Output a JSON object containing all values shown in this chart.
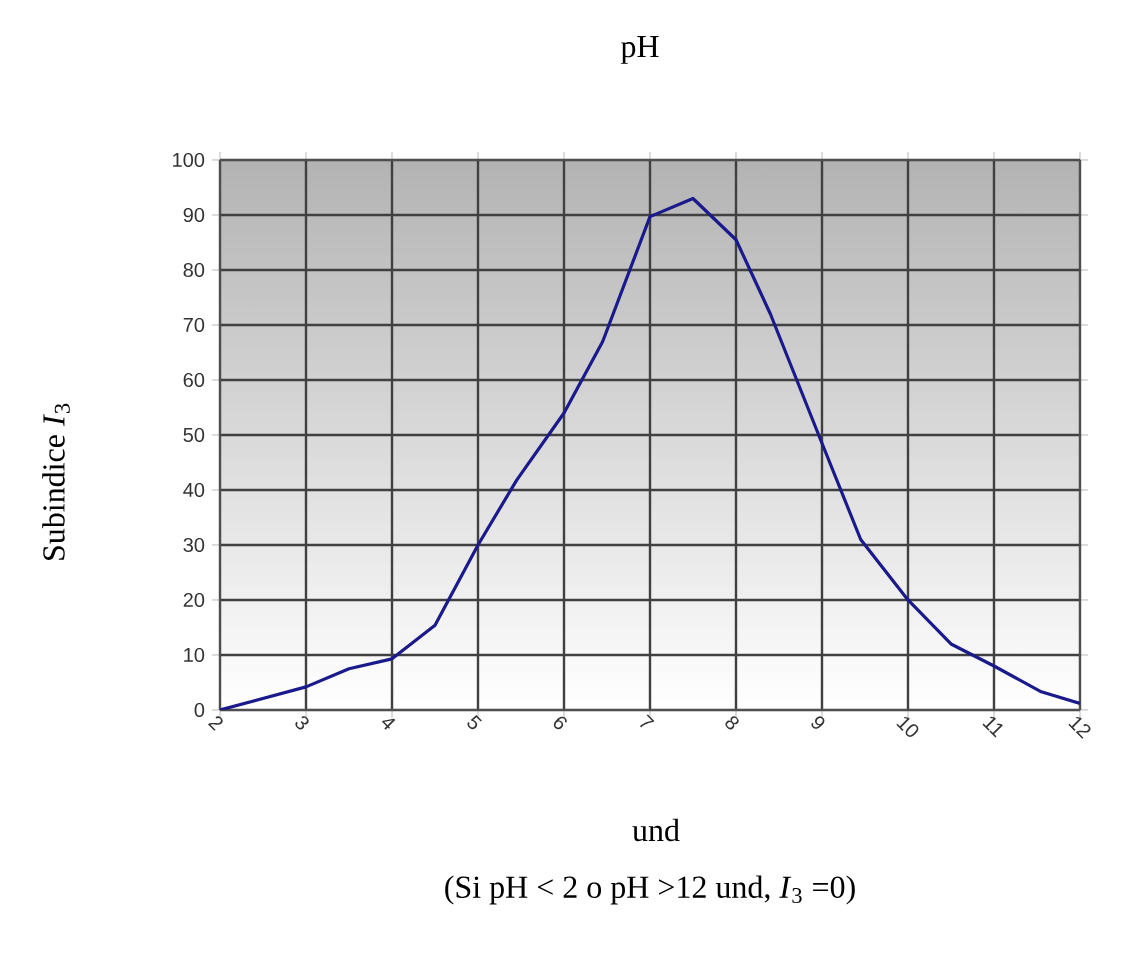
{
  "chart_data": {
    "type": "line",
    "title": "pH",
    "xlabel": "und",
    "ylabel": "Subindice *I*$_{3}$",
    "annotations": [
      "(Si pH < 2 o pH >12 und, *I*$_{3}$ =0)"
    ],
    "x": [
      2,
      3,
      3.5,
      4,
      4.5,
      5,
      5.45,
      6,
      6.45,
      7,
      7.5,
      8,
      8.4,
      9,
      9.45,
      10,
      10.5,
      11,
      11.55,
      12
    ],
    "series": [
      {
        "color": "#1a1a8c",
        "values": [
          0,
          4.2,
          7.5,
          9.3,
          15.4,
          30,
          41.8,
          54,
          67,
          89.7,
          93,
          85.5,
          72,
          48.5,
          31,
          20,
          12,
          8,
          3.3,
          1.2
        ]
      }
    ],
    "xlim": [
      2,
      12
    ],
    "ylim": [
      0,
      100
    ],
    "xticks": [
      2,
      3,
      4,
      5,
      6,
      7,
      8,
      9,
      10,
      11,
      12
    ],
    "yticks": [
      0,
      10,
      20,
      30,
      40,
      50,
      60,
      70,
      80,
      90,
      100
    ],
    "grid": true,
    "marker": "none",
    "line_style": "solid"
  }
}
